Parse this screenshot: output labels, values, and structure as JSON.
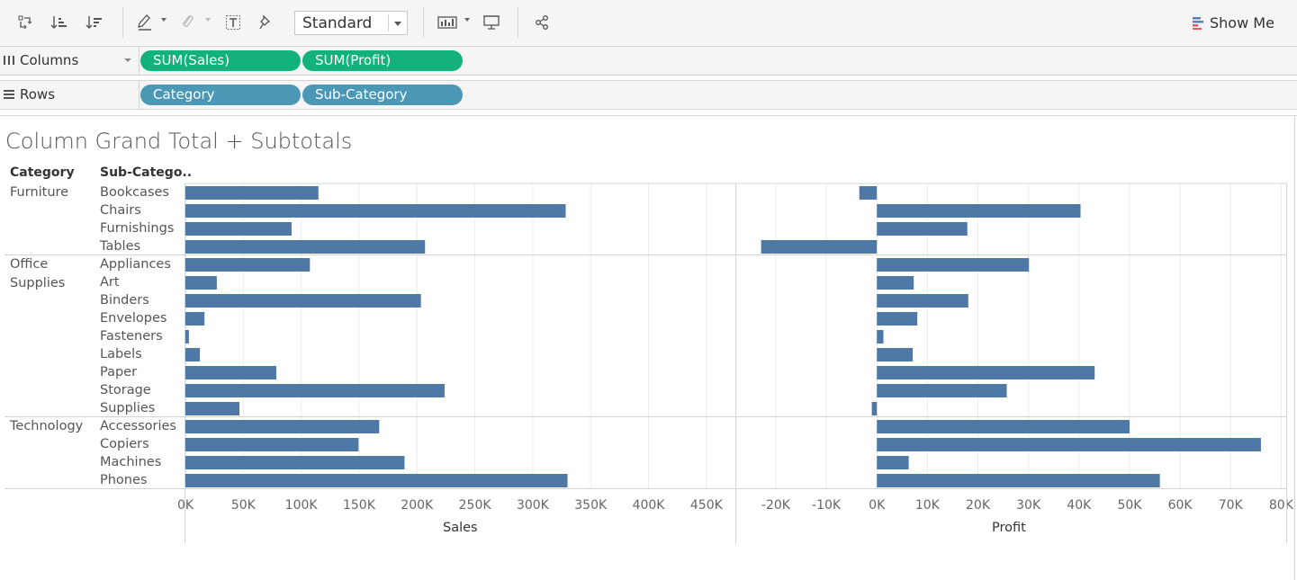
{
  "toolbar": {
    "icons": [
      "swap-rows-columns-icon",
      "sort-ascending-icon",
      "sort-descending-icon",
      "highlight-icon",
      "group-members-icon",
      "show-mark-labels-icon",
      "fix-axes-icon",
      "show-cards-icon",
      "presentation-mode-icon",
      "share-icon"
    ],
    "fit_value": "Standard",
    "show_me_label": "Show Me"
  },
  "shelves": {
    "columns_label": "Columns",
    "rows_label": "Rows",
    "column_pills": [
      "SUM(Sales)",
      "SUM(Profit)"
    ],
    "row_pills": [
      "Category",
      "Sub-Category"
    ]
  },
  "colors": {
    "bar": "#4e79a7",
    "measure_pill": "#13b27a",
    "dimension_pill": "#4a98b5",
    "gridline": "#ececec",
    "divider": "#d4d4d4"
  },
  "view": {
    "title": "Column Grand Total + Subtotals",
    "category_header": "Category",
    "subcategory_header": "Sub-Catego..",
    "categories": [
      {
        "name_lines": [
          "Furniture"
        ],
        "subs": [
          "Bookcases",
          "Chairs",
          "Furnishings",
          "Tables"
        ]
      },
      {
        "name_lines": [
          "Office",
          "Supplies"
        ],
        "subs": [
          "Appliances",
          "Art",
          "Binders",
          "Envelopes",
          "Fasteners",
          "Labels",
          "Paper",
          "Storage",
          "Supplies"
        ]
      },
      {
        "name_lines": [
          "Technology"
        ],
        "subs": [
          "Accessories",
          "Copiers",
          "Machines",
          "Phones"
        ]
      }
    ]
  },
  "chart_data": [
    {
      "type": "bar",
      "orientation": "horizontal",
      "xlabel": "Sales",
      "xlim": [
        0,
        475000
      ],
      "ticks": [
        "0K",
        "50K",
        "100K",
        "150K",
        "200K",
        "250K",
        "300K",
        "350K",
        "400K",
        "450K"
      ],
      "tick_values": [
        0,
        50000,
        100000,
        150000,
        200000,
        250000,
        300000,
        350000,
        400000,
        450000
      ],
      "categories": [
        "Bookcases",
        "Chairs",
        "Furnishings",
        "Tables",
        "Appliances",
        "Art",
        "Binders",
        "Envelopes",
        "Fasteners",
        "Labels",
        "Paper",
        "Storage",
        "Supplies",
        "Accessories",
        "Copiers",
        "Machines",
        "Phones"
      ],
      "values": [
        114880,
        328449,
        91705,
        206966,
        107532,
        27119,
        203413,
        16476,
        3024,
        12486,
        78479,
        223844,
        46674,
        167380,
        149528,
        189239,
        330007
      ],
      "grid": true
    },
    {
      "type": "bar",
      "orientation": "horizontal",
      "xlabel": "Profit",
      "xlim": [
        -28000,
        81000
      ],
      "ticks": [
        "-20K",
        "-10K",
        "0K",
        "10K",
        "20K",
        "30K",
        "40K",
        "50K",
        "60K",
        "70K",
        "80K"
      ],
      "tick_values": [
        -20000,
        -10000,
        0,
        10000,
        20000,
        30000,
        40000,
        50000,
        60000,
        70000,
        80000
      ],
      "categories": [
        "Bookcases",
        "Chairs",
        "Furnishings",
        "Tables",
        "Appliances",
        "Art",
        "Binders",
        "Envelopes",
        "Fasteners",
        "Labels",
        "Paper",
        "Storage",
        "Supplies",
        "Accessories",
        "Copiers",
        "Machines",
        "Phones"
      ],
      "values": [
        -3473,
        40300,
        17900,
        -22900,
        30100,
        7300,
        18100,
        8000,
        1300,
        7100,
        43100,
        25700,
        -1000,
        50000,
        76000,
        6300,
        56000
      ],
      "grid": true
    }
  ]
}
